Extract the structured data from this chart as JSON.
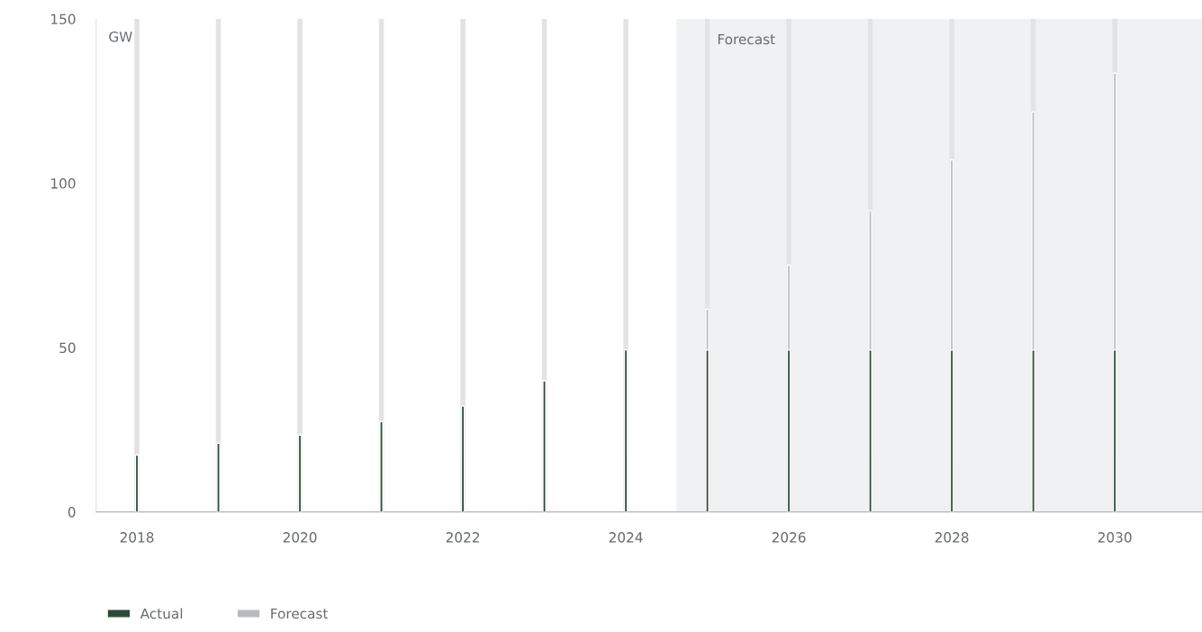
{
  "chart_data": {
    "type": "bar",
    "stacked": true,
    "ylabel": "GW",
    "x": [
      2018,
      2019,
      2020,
      2021,
      2022,
      2023,
      2024,
      2025,
      2026,
      2027,
      2028,
      2029,
      2030
    ],
    "series": [
      {
        "name": "Actual",
        "color": "#2d4a37",
        "values": [
          17.3,
          20.9,
          23.4,
          27.5,
          32.2,
          39.9,
          49.3,
          49.3,
          49.3,
          49.3,
          49.3,
          49.3,
          49.3
        ]
      },
      {
        "name": "Forecast",
        "color": "#b8babd",
        "values": [
          null,
          null,
          null,
          null,
          null,
          null,
          null,
          12.4,
          25.8,
          42.4,
          57.8,
          72.4,
          84.2
        ]
      }
    ],
    "xlim": [
      2017.5,
      2031.07
    ],
    "ylim": [
      0,
      150
    ],
    "xticks": [
      2018,
      {
        "value": 2019,
        "label": null
      },
      2020,
      {
        "value": 2021,
        "label": null
      },
      2022,
      {
        "value": 2023,
        "label": null
      },
      2024,
      {
        "value": 2025,
        "label": null
      },
      2026,
      {
        "value": 2027,
        "label": null
      },
      2028,
      {
        "value": 2029,
        "label": null
      },
      2030
    ],
    "yticks": [
      0,
      50,
      100,
      150
    ],
    "bands": [
      {
        "axis": "x",
        "from": 2024.62,
        "to": 2031.07,
        "label": "Forecast",
        "color": "#f0f1f3"
      }
    ],
    "grid": "x",
    "legend": "bottom left"
  }
}
